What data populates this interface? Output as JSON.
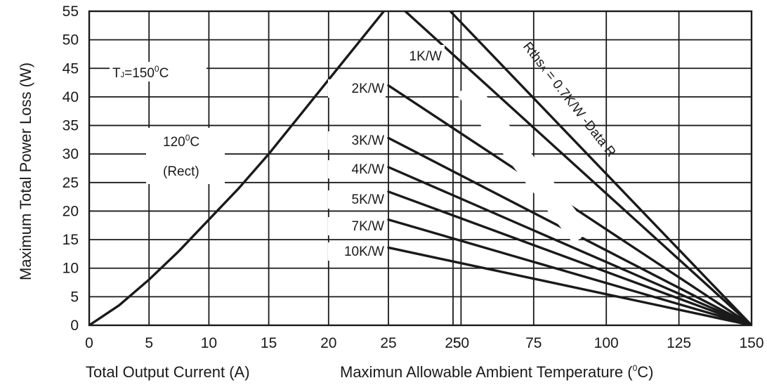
{
  "chart_data": {
    "type": "line",
    "title": "",
    "ylabel": "Maximum Total Power Loss (W)",
    "xlabel_left": "Total Output Current (A)",
    "xlabel_right_main": "Maximun Allowable Ambient Temperature (",
    "xlabel_right_sup": "0",
    "xlabel_right_end": "C)",
    "grid": true,
    "left_panel": {
      "x_axis": "Total Output Current (A)",
      "xlim": [
        0,
        25
      ],
      "ylim": [
        0,
        55
      ],
      "x_ticks": [
        "0",
        "5",
        "10",
        "15",
        "20",
        "25"
      ],
      "series": [
        {
          "x": [
            0,
            2.5,
            5,
            7.5,
            10,
            12.5,
            15,
            17.5,
            20,
            22.5,
            25,
            26
          ],
          "y": [
            0,
            3.5,
            8,
            13,
            18.5,
            24,
            30,
            36.5,
            43,
            49.5,
            56,
            58.5
          ]
        }
      ]
    },
    "right_panel": {
      "x_axis": "Maximun Allowable Ambient Temperature (°C)",
      "xlim": [
        25,
        150
      ],
      "ylim": [
        0,
        55
      ],
      "x_ticks": [
        "25",
        "50",
        "75",
        "100",
        "125",
        "150"
      ],
      "series": [
        {
          "name": "Rthsa = 0.7K/W -Data R",
          "x": [
            25,
            150
          ],
          "y": [
            57,
            0
          ]
        },
        {
          "name": "1K/W",
          "x": [
            25,
            150
          ],
          "y": [
            56,
            0
          ]
        },
        {
          "name": "2K/W",
          "x": [
            25,
            150
          ],
          "y": [
            42,
            0
          ]
        },
        {
          "name": "3K/W",
          "x": [
            25,
            150
          ],
          "y": [
            32.8,
            0
          ]
        },
        {
          "name": "4K/W",
          "x": [
            25,
            150
          ],
          "y": [
            27.7,
            0
          ]
        },
        {
          "name": "5K/W",
          "x": [
            25,
            150
          ],
          "y": [
            23.4,
            0
          ]
        },
        {
          "name": "7K/W",
          "x": [
            25,
            150
          ],
          "y": [
            18.5,
            0
          ]
        },
        {
          "name": "10K/W",
          "x": [
            25,
            150
          ],
          "y": [
            13.6,
            0
          ]
        }
      ]
    },
    "y_ticks": [
      "0",
      "5",
      "10",
      "15",
      "20",
      "25",
      "30",
      "35",
      "40",
      "45",
      "50",
      "55"
    ],
    "annotations": {
      "tj": {
        "main": "T",
        "sub": "J",
        "mid": "=150",
        "sup": "0",
        "end": "C"
      },
      "cond": {
        "main": "120",
        "sup": "0",
        "end": "C"
      },
      "rect": "(Rect)",
      "rth": {
        "main": "Rths",
        "sub": "A",
        "end": " = 0.7K/W -Data R"
      }
    }
  }
}
